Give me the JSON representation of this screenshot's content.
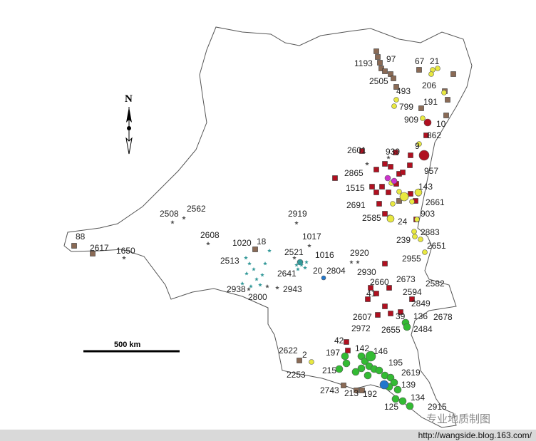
{
  "map": {
    "north_label": "N",
    "scale_label": "500 km",
    "watermark": "专业地质制图",
    "source_url": "http://wangside.blog.163.com/",
    "colors": {
      "outline": "#555555",
      "brown_square": "#8a6a55",
      "red_square": "#b01020",
      "yellow_circle": "#e8e840",
      "green_circle": "#33bb33",
      "magenta_circle": "#cc33cc",
      "blue_circle": "#2277cc",
      "teal_star": "#339999",
      "gray_star": "#555555"
    },
    "labels": [
      "1193",
      "97",
      "67",
      "21",
      "2505",
      "493",
      "206",
      "799",
      "191",
      "909",
      "10",
      "862",
      "9",
      "2601",
      "939",
      "2865",
      "957",
      "1515",
      "143",
      "2691",
      "2661",
      "903",
      "2585",
      "24",
      "2883",
      "239",
      "2651",
      "2955",
      "2920",
      "2930",
      "2660",
      "2673",
      "2582",
      "41",
      "2594",
      "2849",
      "2607",
      "39",
      "136",
      "2678",
      "2972",
      "2655",
      "2484",
      "42",
      "142",
      "146",
      "197",
      "2622",
      "2",
      "195",
      "215",
      "2253",
      "2619",
      "139",
      "2743",
      "213",
      "192",
      "134",
      "125",
      "2915",
      "88",
      "2617",
      "1650",
      "2508",
      "2562",
      "2608",
      "2919",
      "1017",
      "1020",
      "18",
      "2521",
      "1016",
      "2513",
      "2641",
      "20",
      "2804",
      "2938",
      "2943",
      "2800"
    ]
  }
}
